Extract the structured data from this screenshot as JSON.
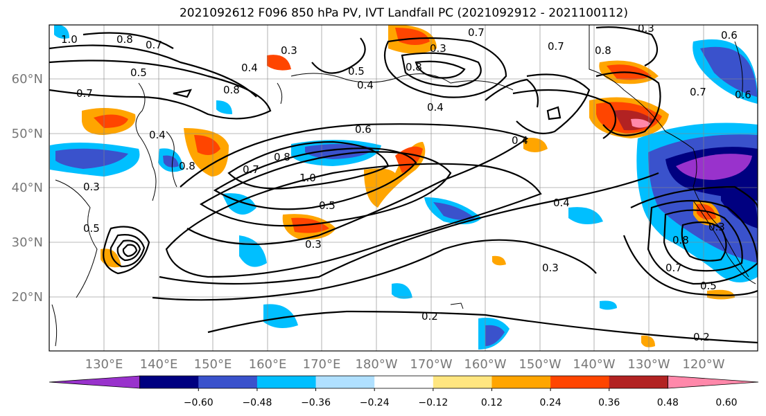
{
  "title": "2021092612 F096 850 hPa PV, IVT Landfall PC (2021092912 - 2021100112)",
  "lat_labels": [
    "60°N",
    "50°N",
    "40°N",
    "30°N",
    "20°N"
  ],
  "lon_labels": [
    "130°E",
    "140°E",
    "150°E",
    "160°E",
    "170°E",
    "180°W",
    "170°W",
    "160°W",
    "150°W",
    "140°W",
    "130°W",
    "120°W"
  ],
  "colorbar": {
    "colors": [
      "#9932cc",
      "#000080",
      "#3a52cc",
      "#00bfff",
      "#b0e0ff",
      "#ffffff",
      "#ffe680",
      "#ffa500",
      "#ff4500",
      "#b22222",
      "#ff88aa"
    ],
    "labels": [
      "−0.60",
      "−0.48",
      "−0.36",
      "−0.24",
      "−0.12",
      "0.12",
      "0.24",
      "0.36",
      "0.48",
      "0.60"
    ]
  },
  "contour_labels": [
    "1.0",
    "0.8",
    "0.7",
    "0.5",
    "0.7",
    "0.4",
    "0.8",
    "0.3",
    "0.7",
    "0.3",
    "0.6",
    "0.8",
    "0.5",
    "0.4",
    "0.4",
    "0.7",
    "0.8",
    "0.3",
    "0.6",
    "0.4",
    "0.8",
    "1.0",
    "0.7",
    "0.5",
    "0.3",
    "0.4",
    "0.3",
    "0.2",
    "0.3",
    "0.7",
    "0.5",
    "0.8",
    "0.7",
    "0.5",
    "0.2",
    "0.3",
    "0.6",
    "0.8",
    "0.4"
  ]
}
